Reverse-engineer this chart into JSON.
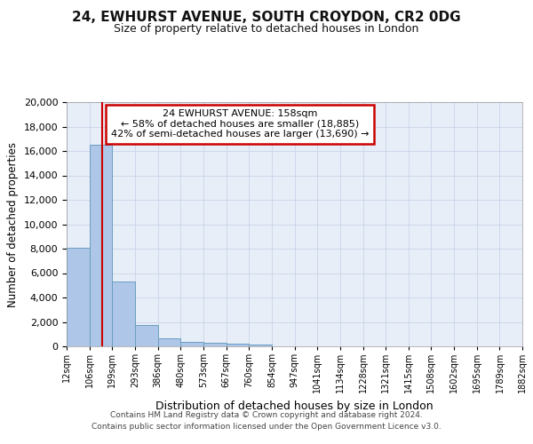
{
  "title_line1": "24, EWHURST AVENUE, SOUTH CROYDON, CR2 0DG",
  "title_line2": "Size of property relative to detached houses in London",
  "xlabel": "Distribution of detached houses by size in London",
  "ylabel": "Number of detached properties",
  "annotation_line1": "24 EWHURST AVENUE: 158sqm",
  "annotation_line2": "← 58% of detached houses are smaller (18,885)",
  "annotation_line3": "42% of semi-detached houses are larger (13,690) →",
  "footer_line1": "Contains HM Land Registry data © Crown copyright and database right 2024.",
  "footer_line2": "Contains public sector information licensed under the Open Government Licence v3.0.",
  "bin_edges": [
    12,
    106,
    199,
    293,
    386,
    480,
    573,
    667,
    760,
    854,
    947,
    1041,
    1134,
    1228,
    1321,
    1415,
    1508,
    1602,
    1695,
    1789,
    1882
  ],
  "bin_labels": [
    "12sqm",
    "106sqm",
    "199sqm",
    "293sqm",
    "386sqm",
    "480sqm",
    "573sqm",
    "667sqm",
    "760sqm",
    "854sqm",
    "947sqm",
    "1041sqm",
    "1134sqm",
    "1228sqm",
    "1321sqm",
    "1415sqm",
    "1508sqm",
    "1602sqm",
    "1695sqm",
    "1789sqm",
    "1882sqm"
  ],
  "bar_heights": [
    8100,
    16500,
    5300,
    1750,
    650,
    350,
    280,
    190,
    170,
    0,
    0,
    0,
    0,
    0,
    0,
    0,
    0,
    0,
    0,
    0
  ],
  "bar_color": "#aec6e8",
  "bar_edge_color": "#6a9fc0",
  "vline_x": 158,
  "vline_color": "#cc0000",
  "grid_color": "#c8d4e8",
  "annotation_box_color": "#cc0000",
  "ylim": [
    0,
    20000
  ],
  "yticks": [
    0,
    2000,
    4000,
    6000,
    8000,
    10000,
    12000,
    14000,
    16000,
    18000,
    20000
  ],
  "bg_color": "#ffffff",
  "plot_bg_color": "#e8eef8"
}
